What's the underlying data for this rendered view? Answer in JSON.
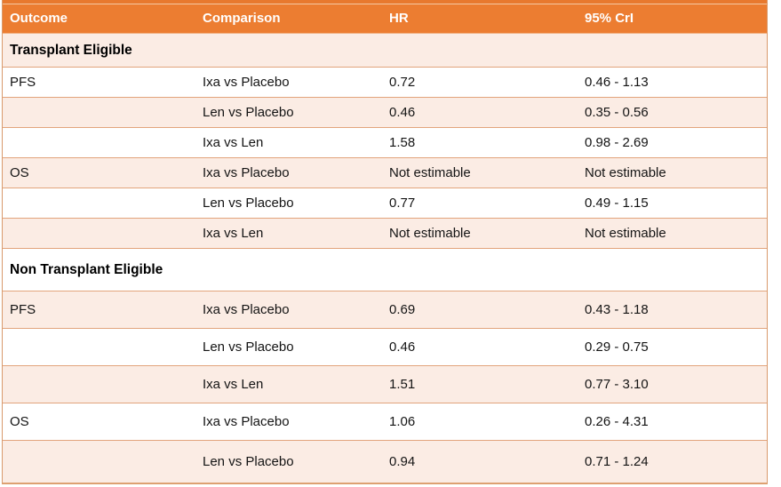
{
  "table": {
    "columns": {
      "outcome": "Outcome",
      "comparison": "Comparison",
      "hr": "HR",
      "cri": "95% CrI"
    },
    "accent_color": "#ec7d31",
    "band_color": "#fbece4",
    "sections": [
      {
        "label": "Transplant Eligible",
        "rows": [
          {
            "outcome": "PFS",
            "comparison": "Ixa vs Placebo",
            "hr": "0.72",
            "cri": "0.46 - 1.13"
          },
          {
            "outcome": "",
            "comparison": "Len vs Placebo",
            "hr": "0.46",
            "cri": "0.35 - 0.56"
          },
          {
            "outcome": "",
            "comparison": "Ixa vs Len",
            "hr": "1.58",
            "cri": "0.98 - 2.69"
          },
          {
            "outcome": "OS",
            "comparison": "Ixa vs Placebo",
            "hr": "Not estimable",
            "cri": "Not estimable"
          },
          {
            "outcome": "",
            "comparison": "Len vs Placebo",
            "hr": "0.77",
            "cri": "0.49 - 1.15"
          },
          {
            "outcome": "",
            "comparison": "Ixa vs Len",
            "hr": "Not estimable",
            "cri": "Not estimable"
          }
        ]
      },
      {
        "label": "Non Transplant Eligible",
        "rows": [
          {
            "outcome": "PFS",
            "comparison": "Ixa vs Placebo",
            "hr": "0.69",
            "cri": "0.43 - 1.18"
          },
          {
            "outcome": "",
            "comparison": "Len vs Placebo",
            "hr": "0.46",
            "cri": "0.29 - 0.75"
          },
          {
            "outcome": "",
            "comparison": "Ixa vs Len",
            "hr": "1.51",
            "cri": "0.77 - 3.10"
          },
          {
            "outcome": "OS",
            "comparison": "Ixa vs Placebo",
            "hr": "1.06",
            "cri": "0.26 - 4.31"
          },
          {
            "outcome": "",
            "comparison": "Len vs Placebo",
            "hr": "0.94",
            "cri": "0.71 - 1.24"
          }
        ]
      }
    ]
  }
}
